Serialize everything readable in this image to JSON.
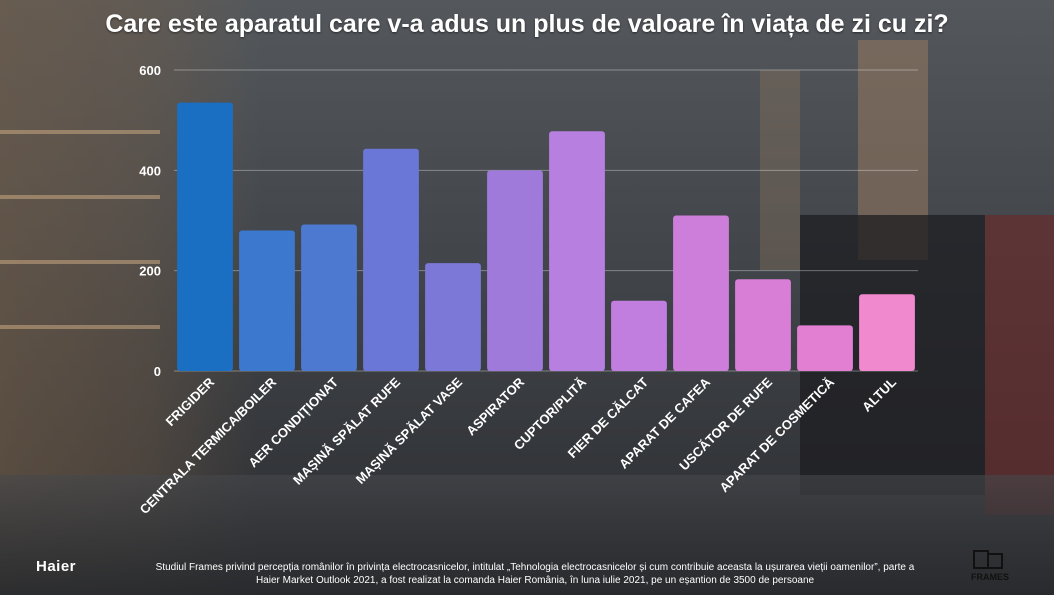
{
  "title": "Care este aparatul care v-a adus un plus de valoare în viața de zi cu zi?",
  "chart_data": {
    "type": "bar",
    "categories": [
      "FRIGIDER",
      "CENTRALA TERMICA/BOILER",
      "AER CONDIȚIONAT",
      "MAȘINĂ SPĂLAT RUFE",
      "MAȘINĂ SPĂLAT VASE",
      "ASPIRATOR",
      "CUPTOR/PLITĂ",
      "FIER DE CĂLCAT",
      "APARAT DE CAFEA",
      "USCĂTOR DE RUFE",
      "APARAT DE COSMETICĂ",
      "ALTUL"
    ],
    "values": [
      535,
      280,
      292,
      443,
      215,
      400,
      478,
      140,
      310,
      183,
      91,
      153
    ],
    "ylim": [
      0,
      600
    ],
    "yticks": [
      0,
      200,
      400,
      600
    ],
    "grid": true,
    "colors": [
      "#1a6fc3",
      "#3d78cf",
      "#4e79d1",
      "#6a77d6",
      "#7b78d8",
      "#9f7ada",
      "#b780e0",
      "#c17ede",
      "#cd7edb",
      "#d87ed6",
      "#e27fd3",
      "#f189cf"
    ]
  },
  "footer": {
    "line1": "Studiul Frames privind percepția românilor în privința electrocasnicelor, intitulat „Tehnologia electrocasnicelor și cum contribuie aceasta la ușurarea vieții oamenilor”, parte a",
    "line2": "Haier Market Outlook 2021, a fost realizat la comanda Haier România, în luna iulie 2021, pe un eșantion de 3500 de persoane"
  },
  "brand": "Haier",
  "logo_text": "FRAMES"
}
